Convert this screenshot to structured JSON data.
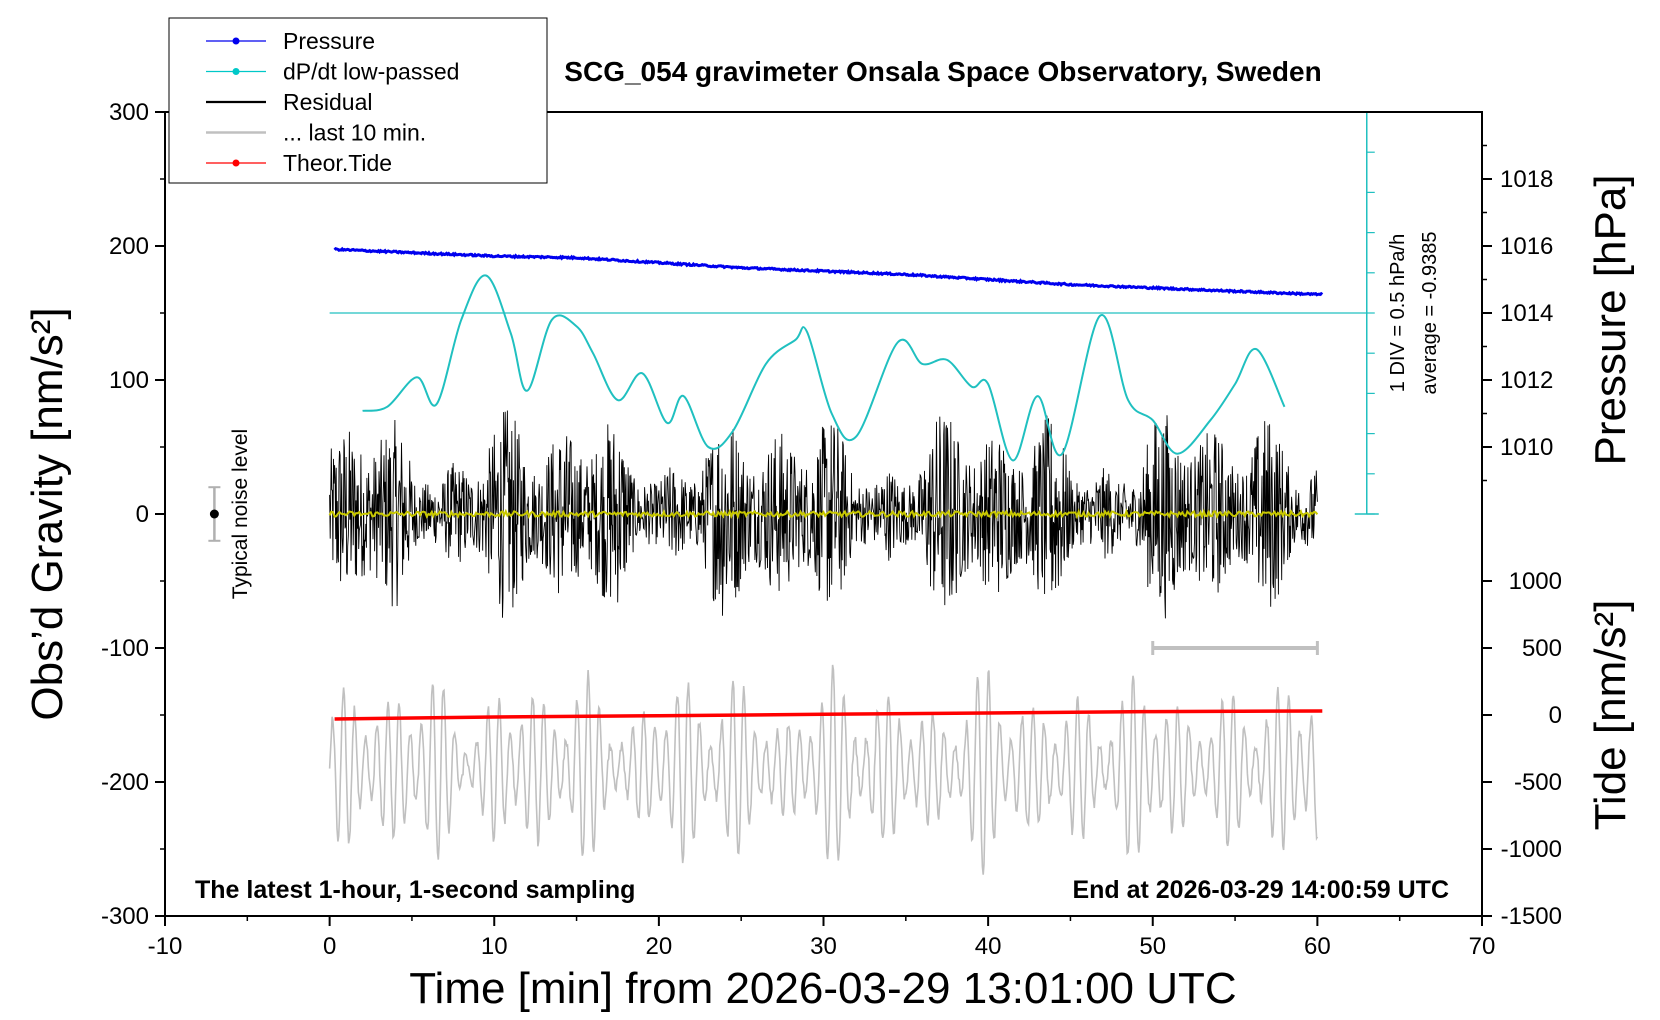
{
  "chart_data": {
    "type": "line",
    "title": "SCG_054 gravimeter Onsala Space Observatory, Sweden",
    "xlabel": "Time [min] from 2026-03-29 13:01:00 UTC",
    "ylabel_left": "Obs’d Gravity [nm/s²]",
    "ylabel_right_top": "Pressure [hPa]",
    "ylabel_right_bottom": "Tide [nm/s²]",
    "xlim": [
      -10,
      70
    ],
    "ylim": [
      -300,
      300
    ],
    "pressure_axis_range": [
      1008,
      1020
    ],
    "tide_axis_range": [
      -1500,
      1000
    ],
    "x_ticks": [
      "-10",
      "0",
      "10",
      "20",
      "30",
      "40",
      "50",
      "60",
      "70"
    ],
    "y_ticks": [
      "300",
      "200",
      "100",
      "0",
      "-100",
      "-200",
      "-300"
    ],
    "pressure_ticks": [
      "1018",
      "1016",
      "1014",
      "1012",
      "1010"
    ],
    "tide_ticks": [
      "1000",
      "500",
      "0",
      "-500",
      "-1000",
      "-1500"
    ],
    "annotations": {
      "bottom_left": "The latest 1-hour, 1-second sampling",
      "bottom_right": "End at 2026-03-29 14:00:59 UTC",
      "noise": "Typical noise level",
      "div": "1 DIV = 0.5 hPa/h",
      "average": "average = -0.9385"
    },
    "legend": {
      "position": "top-left",
      "entries": [
        {
          "label": "Pressure",
          "color": "#0000ee",
          "marker": true
        },
        {
          "label": "dP/dt low-passed",
          "color": "#00c8c8",
          "marker": true
        },
        {
          "label": "Residual",
          "color": "#000000",
          "marker": false
        },
        {
          "label": "... last 10 min.",
          "color": "#c0c0c0",
          "marker": false
        },
        {
          "label": "Theor.Tide",
          "color": "#ff0000",
          "marker": true
        }
      ]
    },
    "series": [
      {
        "name": "Pressure",
        "color": "#0000ee",
        "axis": "pressure",
        "x": [
          0.3,
          5,
          10,
          15,
          20,
          25,
          30,
          35,
          40,
          45,
          50,
          55,
          60.3
        ],
        "values": [
          1015.9,
          1015.8,
          1015.7,
          1015.65,
          1015.5,
          1015.35,
          1015.25,
          1015.15,
          1015.0,
          1014.85,
          1014.75,
          1014.65,
          1014.55
        ]
      },
      {
        "name": "dP/dt low-passed",
        "color": "#00c8c8",
        "axis": "gravity",
        "x": [
          2,
          3.5,
          5.3,
          6.5,
          8,
          9.5,
          11,
          12,
          13.5,
          15,
          16,
          17.5,
          19,
          20.5,
          21.5,
          23,
          24.5,
          26.5,
          28.3,
          29,
          30.5,
          32,
          34.5,
          36,
          37.5,
          39,
          40,
          41.5,
          43,
          44.5,
          46.8,
          48.5,
          50,
          51.5,
          53.5,
          55,
          56.3,
          58
        ],
        "values": [
          77,
          80,
          102,
          82,
          145,
          178,
          135,
          92,
          145,
          140,
          120,
          85,
          105,
          68,
          88,
          50,
          62,
          112,
          130,
          136,
          75,
          58,
          128,
          112,
          115,
          95,
          97,
          40,
          88,
          45,
          148,
          85,
          70,
          45,
          70,
          97,
          123,
          80
        ]
      },
      {
        "name": "Theor.Tide",
        "color": "#ff0000",
        "axis": "tide",
        "x": [
          0.3,
          10,
          20,
          30,
          40,
          50,
          60.3
        ],
        "values": [
          -30,
          -15,
          -5,
          5,
          15,
          25,
          30
        ]
      }
    ],
    "residual_line": {
      "name": "Residual",
      "color": "#000000",
      "x_range": [
        0,
        60
      ],
      "amplitude_range": [
        -110,
        90
      ]
    },
    "last_10min_line": {
      "name": "... last 10 min.",
      "color": "#c0c0c0",
      "x_range": [
        0,
        60
      ],
      "offset": -190,
      "amplitude_range": [
        -275,
        -105
      ]
    },
    "smoothed_residual_color": "#c8c800",
    "last_10min_bar": {
      "x_range": [
        50,
        60
      ],
      "y": -100
    },
    "noise_bar": {
      "x": -7,
      "y_range": [
        -20,
        20
      ]
    },
    "pressure_reference_level": 150,
    "dpdt_axis": {
      "x": 63,
      "y_range": [
        0,
        300
      ],
      "tick_step": 30
    }
  }
}
